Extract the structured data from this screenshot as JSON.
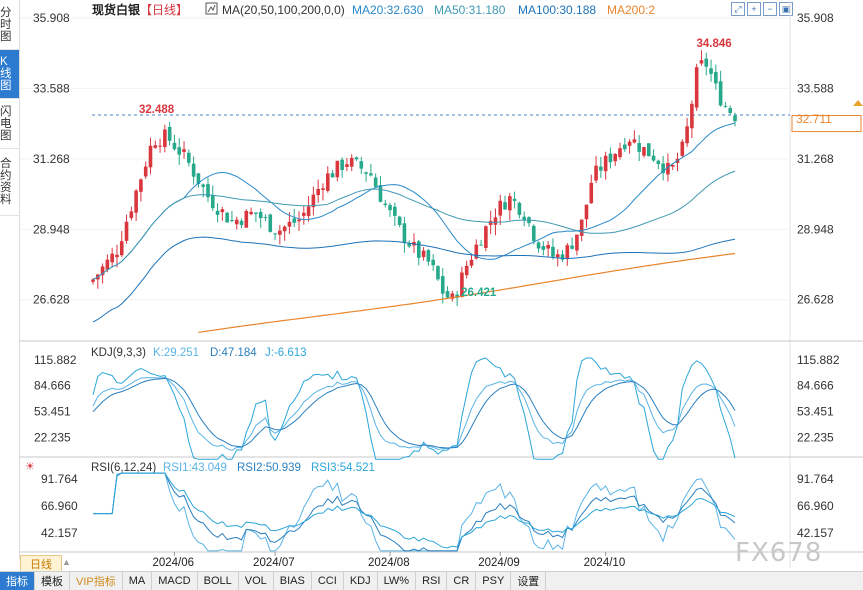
{
  "sidebar": {
    "tabs": [
      "分时图",
      "K线图",
      "闪电图",
      "合约资料"
    ],
    "active": 1
  },
  "header": {
    "title": "现货白银",
    "period": "【日线】",
    "ma_title": "MA(20,50,100,200,0,0)",
    "ma_values": [
      "MA20:32.630",
      "MA50:31.180",
      "MA100:30.188",
      "MA200:2"
    ]
  },
  "kdj_header": {
    "title": "KDJ(9,3,3)",
    "values": [
      "K:29.251",
      "D:47.184",
      "J:-6.613"
    ]
  },
  "rsi_header": {
    "title": "RSI(6,12,24)",
    "values": [
      "RSI1:43.049",
      "RSI2:50.939",
      "RSI3:54.521"
    ]
  },
  "period_tab": "日线",
  "toolbar": [
    "指标",
    "模板",
    "VIP指标",
    "MA",
    "MACD",
    "BOLL",
    "VOL",
    "BIAS",
    "CCI",
    "KDJ",
    "LW%",
    "RSI",
    "CR",
    "PSY",
    "设置"
  ],
  "watermark": "FX678",
  "current_price": "32.711",
  "colors": {
    "up": "#d9363e",
    "down": "#26a88b",
    "ma20": "#2a89c9",
    "ma50": "#3f9ab3",
    "ma100": "#1e72b8",
    "ma200": "#e8862e",
    "k": "#5ab4e6",
    "d": "#2a7fc0",
    "j": "#2ca6d8",
    "accent": "#2d7bd1",
    "ref_line": "#4a86c8"
  },
  "chart_data": {
    "type": "candlestick",
    "x_ticks": [
      "2024/06",
      "2024/07",
      "2024/08",
      "2024/09",
      "2024/10"
    ],
    "y_ticks": [
      26.628,
      28.948,
      31.268,
      33.588,
      35.908
    ],
    "ylim": [
      25.3,
      35.908
    ],
    "annotations": {
      "high": "34.846",
      "low": "26.421",
      "prev_high": "32.488"
    },
    "reference_price": 32.711,
    "kdj": {
      "y_ticks": [
        22.235,
        53.451,
        84.666,
        115.882
      ],
      "ylim": [
        0,
        118
      ]
    },
    "rsi": {
      "y_ticks": [
        42.157,
        66.96,
        91.764
      ],
      "ylim": [
        25,
        98
      ]
    },
    "x_tick_bars": [
      17,
      38,
      62,
      85,
      107
    ],
    "n_bars": 135
  }
}
